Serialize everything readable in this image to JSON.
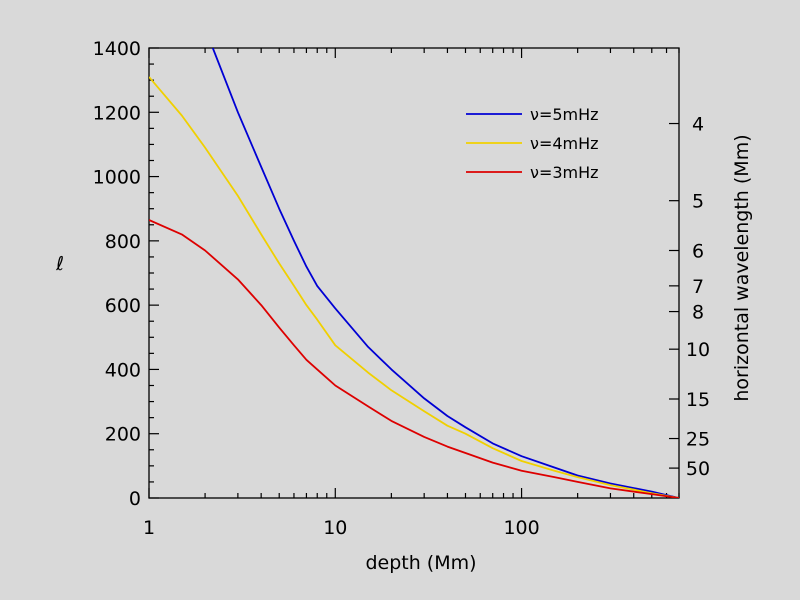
{
  "chart_data": {
    "type": "line",
    "xlabel": "depth (Mm)",
    "ylabel": "ℓ",
    "y2label": "horizontal wavelength (Mm)",
    "xscale": "log",
    "xlim": [
      1,
      700
    ],
    "ylim": [
      0,
      1400
    ],
    "x_ticks": [
      1,
      10,
      100
    ],
    "x_tick_labels": [
      "1",
      "10",
      "100"
    ],
    "y_ticks": [
      0,
      200,
      400,
      600,
      800,
      1000,
      1200,
      1400
    ],
    "y_tick_labels": [
      "0",
      "200",
      "400",
      "600",
      "800",
      "1000",
      "1200",
      "1400"
    ],
    "y2_ticks": [
      {
        "label": "4",
        "ell": 1165
      },
      {
        "label": "5",
        "ell": 925
      },
      {
        "label": "6",
        "ell": 770
      },
      {
        "label": "7",
        "ell": 660
      },
      {
        "label": "8",
        "ell": 580
      },
      {
        "label": "10",
        "ell": 463
      },
      {
        "label": "15",
        "ell": 308
      },
      {
        "label": "25",
        "ell": 185
      },
      {
        "label": "50",
        "ell": 93
      }
    ],
    "legend_position": "top-right",
    "grid": false,
    "series": [
      {
        "name": "ν=5mHz",
        "color": "#0000d4",
        "x": [
          2.2,
          3,
          4,
          5,
          6,
          7,
          8,
          10,
          15,
          20,
          30,
          40,
          50,
          70,
          100,
          150,
          200,
          300,
          500,
          700
        ],
        "y": [
          1400,
          1200,
          1030,
          900,
          800,
          720,
          660,
          590,
          470,
          400,
          310,
          255,
          220,
          170,
          130,
          95,
          70,
          45,
          20,
          0
        ]
      },
      {
        "name": "ν=4mHz",
        "color": "#f0d000",
        "x": [
          1,
          1.5,
          2,
          3,
          4,
          5,
          6,
          7,
          8,
          10,
          15,
          20,
          30,
          40,
          50,
          70,
          100,
          150,
          200,
          300,
          500,
          700
        ],
        "y": [
          1310,
          1190,
          1090,
          940,
          820,
          730,
          660,
          600,
          555,
          475,
          390,
          335,
          270,
          225,
          200,
          155,
          115,
          85,
          65,
          40,
          15,
          0
        ]
      },
      {
        "name": "ν=3mHz",
        "color": "#dd0000",
        "x": [
          1,
          1.5,
          2,
          3,
          4,
          5,
          6,
          7,
          8,
          10,
          15,
          20,
          30,
          40,
          50,
          70,
          100,
          150,
          200,
          300,
          500,
          700
        ],
        "y": [
          865,
          820,
          770,
          680,
          600,
          530,
          475,
          430,
          400,
          350,
          285,
          240,
          190,
          160,
          140,
          110,
          85,
          65,
          50,
          30,
          12,
          0
        ]
      }
    ]
  }
}
